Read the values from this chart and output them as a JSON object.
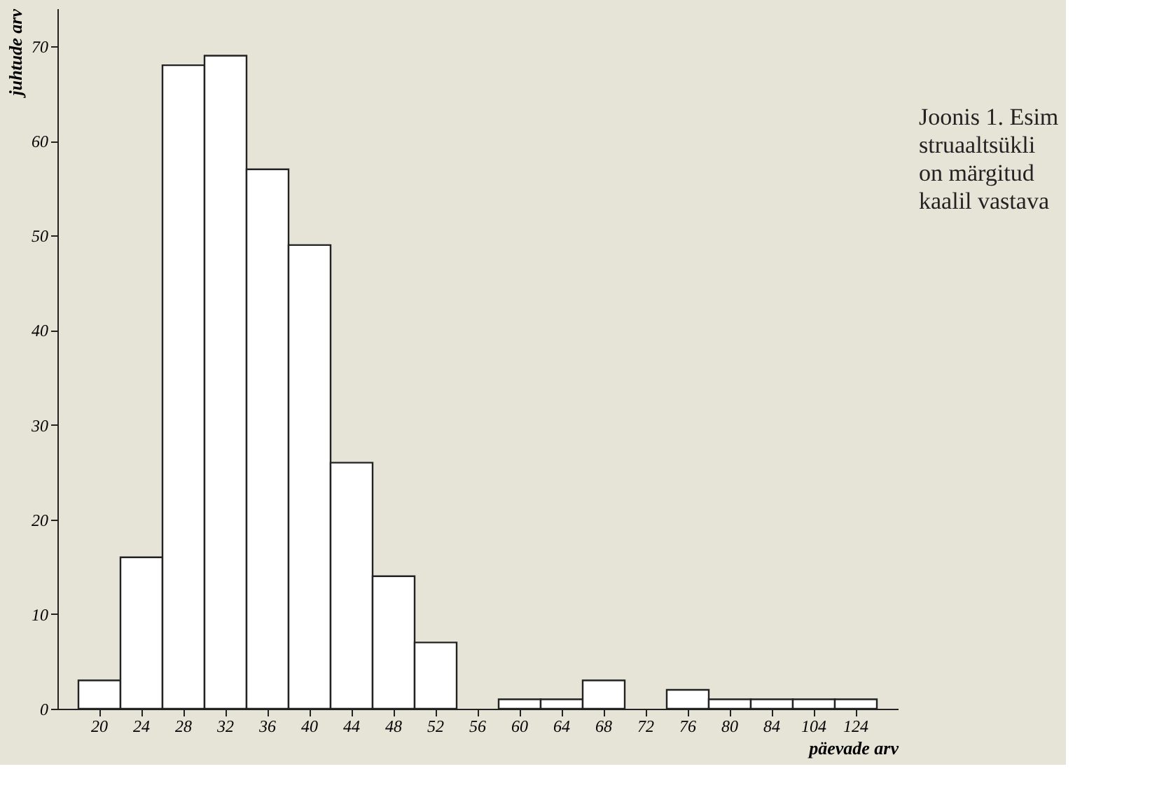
{
  "chart_data": {
    "type": "bar",
    "categories": [
      "20",
      "24",
      "28",
      "32",
      "36",
      "40",
      "44",
      "48",
      "52",
      "56",
      "60",
      "64",
      "68",
      "72",
      "76",
      "80",
      "84",
      "104",
      "124"
    ],
    "values": [
      3,
      16,
      68,
      69,
      57,
      49,
      26,
      14,
      7,
      null,
      1,
      1,
      3,
      null,
      2,
      1,
      1,
      1,
      1
    ],
    "color": "#ffffff",
    "xlabel": "päevade arv",
    "ylabel": "juhtude arv",
    "ylim": [
      0,
      74
    ],
    "yticks": [
      0,
      10,
      20,
      30,
      40,
      50,
      60,
      70
    ],
    "grid": false,
    "annotations": [
      "Joonis 1. Esim",
      "struaaltsükli",
      "on märgitud",
      "kaalil vastava"
    ]
  }
}
